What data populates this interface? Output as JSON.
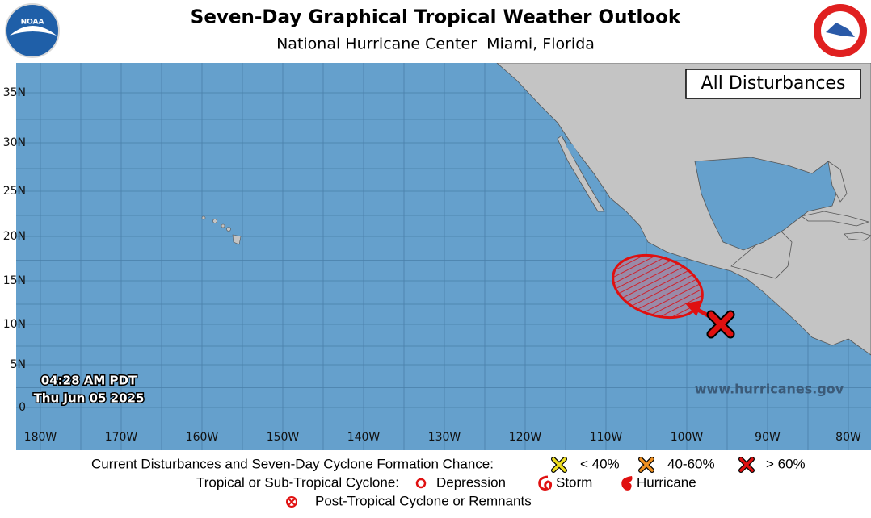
{
  "header": {
    "title": "Seven-Day Graphical Tropical Weather Outlook",
    "subtitle": "National Hurricane Center  Miami, Florida"
  },
  "logos": {
    "noaa": "NOAA"
  },
  "map": {
    "panel_label": "All Disturbances",
    "latitude_labels": [
      "35N",
      "30N",
      "25N",
      "20N",
      "15N",
      "10N",
      "5N",
      "0"
    ],
    "longitude_labels": [
      "180W",
      "170W",
      "160W",
      "150W",
      "140W",
      "130W",
      "120W",
      "110W",
      "100W",
      "90W",
      "80W"
    ],
    "timestamp_time": "04:28 AM PDT",
    "timestamp_date": "Thu Jun 05 2025",
    "website": "www.hurricanes.gov"
  },
  "legend": {
    "formation_heading": "Current Disturbances and Seven-Day Cyclone Formation Chance:",
    "low": "< 40%",
    "medium": "40-60%",
    "high": "> 60%",
    "cyclone_heading": "Tropical or Sub-Tropical Cyclone:",
    "depression": "Depression",
    "storm": "Storm",
    "hurricane": "Hurricane",
    "post_tropical": "Post-Tropical Cyclone or Remnants"
  }
}
